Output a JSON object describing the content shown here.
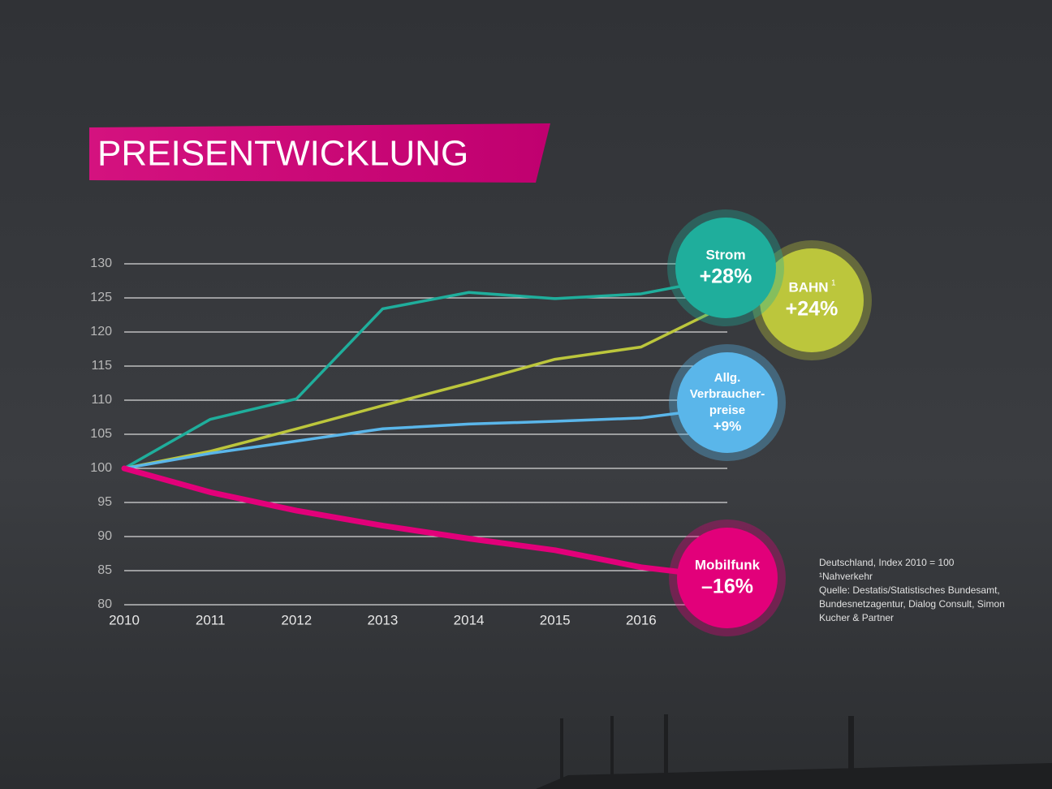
{
  "chart_data": {
    "type": "line",
    "title": "PREISENTWICKLUNG",
    "x": [
      2010,
      2011,
      2012,
      2013,
      2014,
      2015,
      2016,
      2017
    ],
    "xlim": [
      2010,
      2017
    ],
    "xticks": [
      2010,
      2011,
      2012,
      2013,
      2014,
      2015,
      2016
    ],
    "ylim": [
      80,
      130
    ],
    "yticks": [
      80,
      85,
      90,
      95,
      100,
      105,
      110,
      115,
      120,
      125,
      130
    ],
    "grid": true,
    "series": [
      {
        "name": "Strom",
        "label": "+28%",
        "color": "#1fae9c",
        "values": [
          100,
          107.2,
          110.2,
          123.4,
          125.8,
          124.9,
          125.6,
          128
        ]
      },
      {
        "name": "BAHN",
        "note_mark": "1",
        "label": "+24%",
        "color": "#bcc63c",
        "values": [
          100,
          102.5,
          105.8,
          109.2,
          112.5,
          116,
          117.8,
          124
        ]
      },
      {
        "name_lines": [
          "Allg.",
          "Verbraucher-",
          "preise"
        ],
        "label": "+9%",
        "color": "#5ab6ea",
        "values": [
          100,
          102.2,
          104,
          105.8,
          106.5,
          106.9,
          107.4,
          109
        ]
      },
      {
        "name": "Mobilfunk",
        "label": "–16%",
        "color": "#e2007a",
        "values": [
          100,
          96.5,
          93.8,
          91.6,
          89.7,
          88,
          85.5,
          84
        ]
      }
    ],
    "notes": [
      "Deutschland, Index 2010 = 100",
      "¹Nahverkehr",
      "Quelle: Destatis/Statistisches Bundesamt,",
      "Bundesnetzagentur, Dialog Consult, Simon",
      "Kucher & Partner"
    ]
  }
}
